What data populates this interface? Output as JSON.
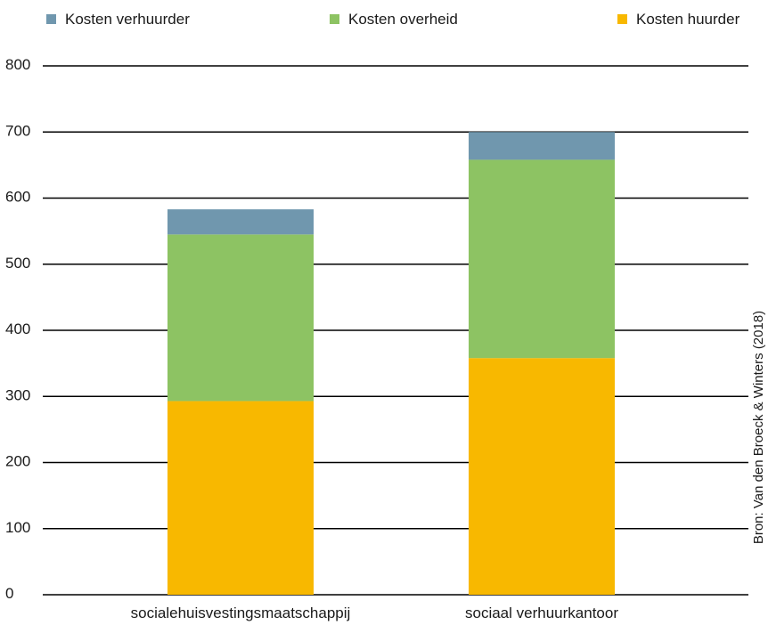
{
  "chart_data": {
    "type": "bar",
    "stacked": true,
    "categories": [
      "socialehuisvestingsmaatschappij",
      "sociaal verhuurkantoor"
    ],
    "series": [
      {
        "name": "Kosten huurder",
        "color": "#f8b800",
        "values": [
          293,
          358
        ]
      },
      {
        "name": "Kosten overheid",
        "color": "#8dc363",
        "values": [
          252,
          300
        ]
      },
      {
        "name": "Kosten verhuurder",
        "color": "#7097ae",
        "values": [
          38,
          42
        ]
      }
    ],
    "legend_order": [
      "Kosten verhuurder",
      "Kosten overheid",
      "Kosten huurder"
    ],
    "legend_position": "top",
    "yticks": [
      0,
      100,
      200,
      300,
      400,
      500,
      600,
      700,
      800
    ],
    "ylim": [
      0,
      800
    ],
    "grid": true,
    "source": "Bron: Van den Broeck & Winters (2018)"
  }
}
